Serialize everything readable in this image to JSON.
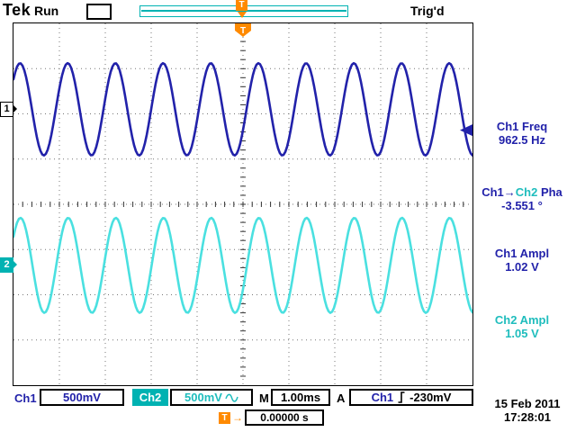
{
  "header": {
    "brand": "Tek",
    "acq_state": "Run",
    "trig_status": "Trig'd"
  },
  "markers": {
    "trigger_letter": "T",
    "ch1_label": "1",
    "ch2_label": "2"
  },
  "colors": {
    "ch1": "#2222aa",
    "ch2_text": "#1fbdbd",
    "ch2_fill": "#00b2b2",
    "ch2_trace": "#4ae0e0",
    "accent": "#ff8a00",
    "grid": "#777777"
  },
  "measurements": [
    {
      "label_parts": [
        {
          "text": "Ch1 Freq",
          "color": "ch1"
        }
      ],
      "value": "962.5 Hz",
      "value_color": "ch1"
    },
    {
      "label_parts": [
        {
          "text": "Ch1→",
          "color": "ch1"
        },
        {
          "text": "Ch2",
          "color": "ch2_text"
        },
        {
          "text": " Pha",
          "color": "ch1"
        }
      ],
      "value": "-3.551 °",
      "value_color": "ch1"
    },
    {
      "label_parts": [
        {
          "text": "Ch1 Ampl",
          "color": "ch1"
        }
      ],
      "value": "1.02 V",
      "value_color": "ch1"
    },
    {
      "label_parts": [
        {
          "text": "Ch2 Ampl",
          "color": "ch2_text"
        }
      ],
      "value": "1.05 V",
      "value_color": "ch2_text"
    }
  ],
  "status_bar": {
    "ch1_label": "Ch1",
    "ch1_scale": "500mV",
    "ch2_label": "Ch2",
    "ch2_scale": "500mV",
    "timebase_label": "M",
    "timebase_value": "1.00ms",
    "trigger_label": "A",
    "trigger_source": "Ch1",
    "trigger_level": "-230mV"
  },
  "delay": {
    "value": "0.00000 s"
  },
  "datetime": {
    "date": "15 Feb 2011",
    "time": "17:28:01"
  },
  "chart_data": {
    "type": "line",
    "instrument": "oscilloscope",
    "time_per_div_s": 0.001,
    "divisions_x": 10,
    "divisions_y": 8,
    "grid": "dotted",
    "series": [
      {
        "name": "Ch1",
        "waveform": "sine",
        "frequency_hz": 962.5,
        "amplitude_vpp": 1.02,
        "phase_deg": 0,
        "volts_per_div": 0.5,
        "center_div_from_top": 1.9,
        "color": "#2222aa"
      },
      {
        "name": "Ch2",
        "waveform": "sine",
        "frequency_hz": 962.5,
        "amplitude_vpp": 1.05,
        "phase_deg": -3.551,
        "volts_per_div": 0.5,
        "center_div_from_top": 5.35,
        "color": "#4ae0e0"
      }
    ],
    "trigger": {
      "source": "Ch1",
      "level_v": -0.23,
      "slope": "rising",
      "position_frac": 0.5
    },
    "measurements": [
      {
        "name": "Ch1 Freq",
        "value": 962.5,
        "unit": "Hz"
      },
      {
        "name": "Ch1→Ch2 Pha",
        "value": -3.551,
        "unit": "°"
      },
      {
        "name": "Ch1 Ampl",
        "value": 1.02,
        "unit": "V"
      },
      {
        "name": "Ch2 Ampl",
        "value": 1.05,
        "unit": "V"
      }
    ]
  }
}
